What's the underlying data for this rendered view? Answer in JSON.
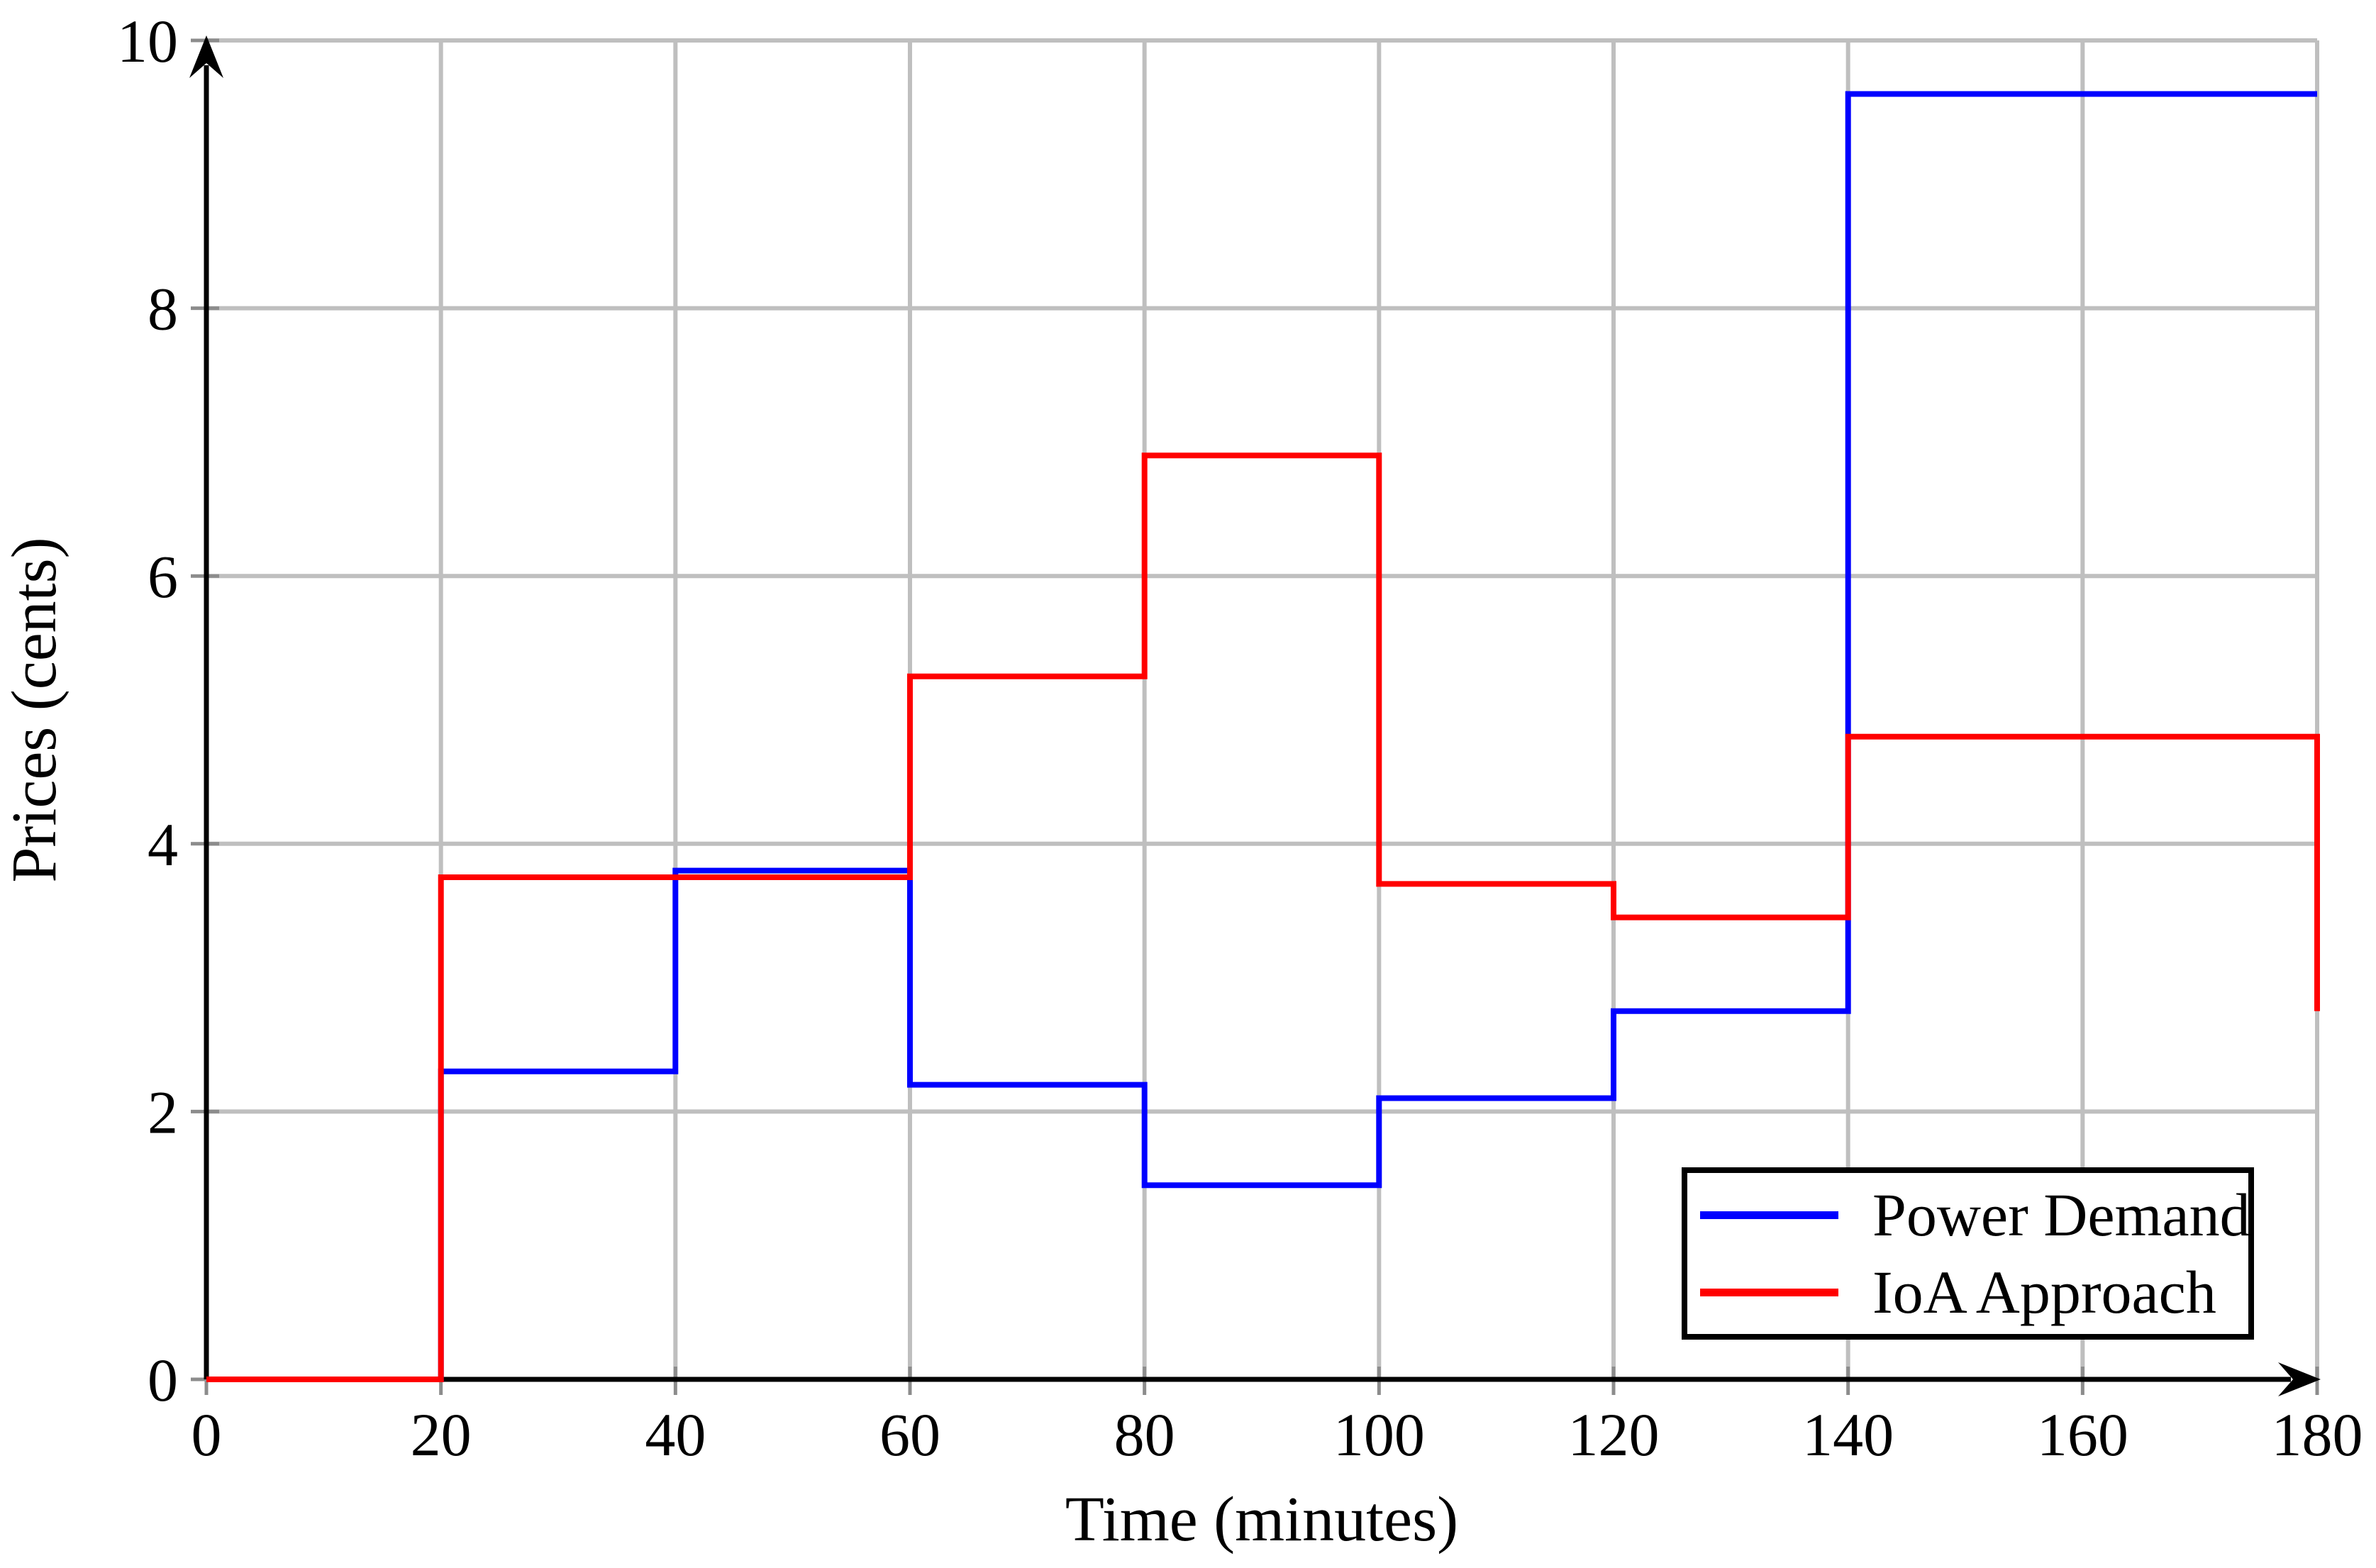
{
  "chart_data": {
    "type": "line",
    "subtype": "step-post",
    "title": "",
    "xlabel": "Time (minutes)",
    "ylabel": "Prices (cents)",
    "xlim": [
      0,
      180
    ],
    "ylim": [
      0,
      10
    ],
    "x_ticks": [
      0,
      20,
      40,
      60,
      80,
      100,
      120,
      140,
      160,
      180
    ],
    "y_ticks": [
      0,
      2,
      4,
      6,
      8,
      10
    ],
    "grid": true,
    "legend_position": "bottom-right",
    "step_edges": [
      0,
      20,
      40,
      60,
      80,
      100,
      120,
      140,
      180
    ],
    "series": [
      {
        "name": "Power Demand",
        "color": "#0000ff",
        "levels": [
          0,
          2.3,
          3.8,
          2.2,
          1.45,
          2.1,
          2.75,
          9.6
        ],
        "end_value": 9.6
      },
      {
        "name": "IoA Approach",
        "color": "#ff0000",
        "levels": [
          0,
          3.75,
          3.75,
          5.25,
          6.9,
          3.7,
          3.45,
          4.8
        ],
        "end_value": 2.75
      }
    ]
  },
  "legend": {
    "items": [
      {
        "label": "Power Demand",
        "color": "#0000ff"
      },
      {
        "label": "IoA Approach",
        "color": "#ff0000"
      }
    ]
  },
  "colors": {
    "background": "#ffffff",
    "grid": "#bfbfbf",
    "tick": "#8c8c8c",
    "axis": "#000000",
    "text": "#000000"
  }
}
